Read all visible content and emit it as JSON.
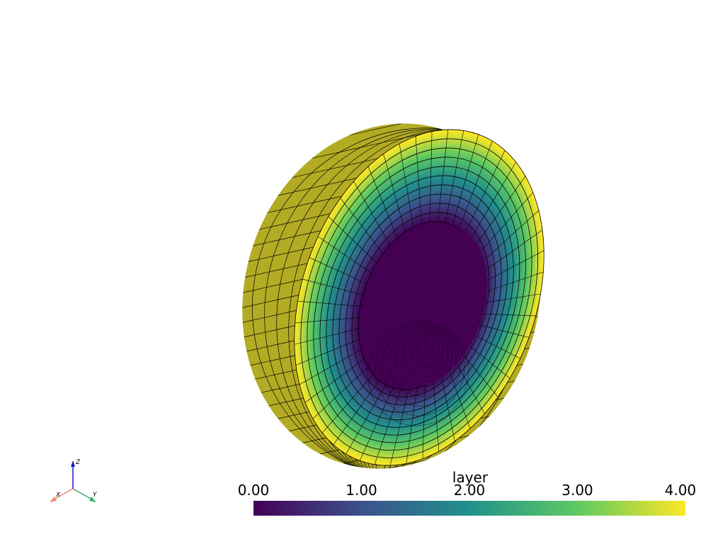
{
  "scalar_bar": {
    "title": "layer",
    "range": [
      0,
      4
    ],
    "ticks": [
      {
        "value": 0,
        "label": "0.00"
      },
      {
        "value": 1,
        "label": "1.00"
      },
      {
        "value": 2,
        "label": "2.00"
      },
      {
        "value": 3,
        "label": "3.00"
      },
      {
        "value": 4,
        "label": "4.00"
      }
    ],
    "colormap": [
      "#440154",
      "#3b528b",
      "#21918c",
      "#5ec962",
      "#fde725"
    ]
  },
  "axes_widget": {
    "x": "X",
    "y": "Y",
    "z": "Z"
  }
}
